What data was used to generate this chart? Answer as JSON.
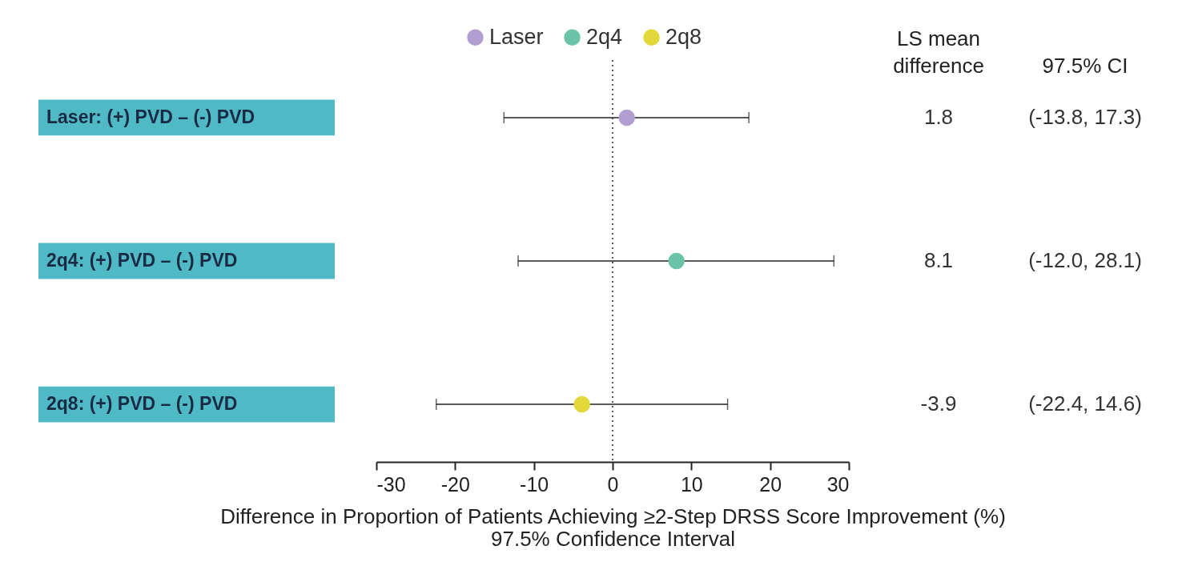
{
  "chart_data": {
    "type": "scatter",
    "orientation": "horizontal",
    "categories": [
      "Laser: (+) PVD – (-) PVD",
      "2q4: (+) PVD – (-) PVD",
      "2q8: (+) PVD – (-) PVD"
    ],
    "series": [
      {
        "name": "Laser",
        "color": "#b09fd0",
        "values": [
          1.8,
          null,
          null
        ],
        "errors": [
          [
            -13.8,
            17.3
          ],
          null,
          null
        ]
      },
      {
        "name": "2q4",
        "color": "#6cc4a8",
        "values": [
          null,
          8.1,
          null
        ],
        "errors": [
          null,
          [
            -12.0,
            28.1
          ],
          null
        ]
      },
      {
        "name": "2q8",
        "color": "#e3d83a",
        "values": [
          null,
          null,
          -3.9
        ],
        "errors": [
          null,
          null,
          [
            -22.4,
            14.6
          ]
        ]
      }
    ],
    "xlim": [
      -30,
      30
    ],
    "xticks": [
      -30,
      -20,
      -10,
      0,
      10,
      20,
      30
    ],
    "xlabel": "Difference in Proportion of Patients Achieving ≥2-Step DRSS Score Improvement (%)\n97.5% Confidence Interval",
    "ref_lines": [
      {
        "axis": "x",
        "value": 0,
        "line_style": "dotted"
      }
    ],
    "legend": "top",
    "grid": false,
    "marker": "circle",
    "annotations": [
      "LS mean difference",
      "97.5% CI",
      "1.8",
      "(-13.8, 17.3)",
      "8.1",
      "(-12.0, 28.1)",
      "-3.9",
      "(-22.4, 14.6)"
    ]
  }
}
